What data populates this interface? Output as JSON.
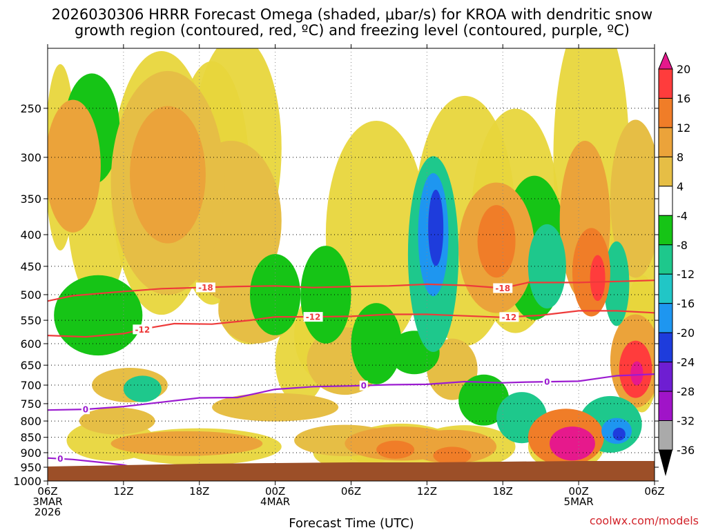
{
  "chart_data": {
    "type": "heatmap",
    "title_line1": "2026030306 HRRR Forecast Omega (shaded, μbar/s) for KROA with dendritic snow",
    "title_line2": "growth region (contoured, red, ºC) and freezing level (contoured, purple, ºC)",
    "xlabel": "Forecast Time (UTC)",
    "credit": "coolwx.com/models",
    "y_axis": {
      "unit": "hPa",
      "ticks": [
        250,
        300,
        350,
        400,
        450,
        500,
        550,
        600,
        650,
        700,
        750,
        800,
        850,
        900,
        950,
        1000
      ],
      "range": [
        200,
        1000
      ]
    },
    "x_axis": {
      "range_hours": [
        0,
        48
      ],
      "ticks": [
        {
          "h": 0,
          "line1": "06Z",
          "line2": "3MAR",
          "line3": "2026"
        },
        {
          "h": 6,
          "line1": "12Z",
          "line2": "",
          "line3": ""
        },
        {
          "h": 12,
          "line1": "18Z",
          "line2": "",
          "line3": ""
        },
        {
          "h": 18,
          "line1": "00Z",
          "line2": "4MAR",
          "line3": ""
        },
        {
          "h": 24,
          "line1": "06Z",
          "line2": "",
          "line3": ""
        },
        {
          "h": 30,
          "line1": "12Z",
          "line2": "",
          "line3": ""
        },
        {
          "h": 36,
          "line1": "18Z",
          "line2": "",
          "line3": ""
        },
        {
          "h": 42,
          "line1": "00Z",
          "line2": "5MAR",
          "line3": ""
        },
        {
          "h": 48,
          "line1": "06Z",
          "line2": "",
          "line3": ""
        }
      ]
    },
    "colorbar": {
      "labels": [
        "20",
        "16",
        "12",
        "8",
        "4",
        "-4",
        "-8",
        "-12",
        "-16",
        "-20",
        "-24",
        "-28",
        "-32",
        "-36"
      ],
      "bands": [
        {
          "from": 16,
          "to": 20,
          "color": "#ff3c3c"
        },
        {
          "from": 12,
          "to": 16,
          "color": "#f07d28"
        },
        {
          "from": 8,
          "to": 12,
          "color": "#eba33a"
        },
        {
          "from": 4,
          "to": 8,
          "color": "#e6be45"
        },
        {
          "from": -4,
          "to": 4,
          "color": "#ffffff"
        },
        {
          "from": -8,
          "to": -4,
          "color": "#16c416"
        },
        {
          "from": -12,
          "to": -8,
          "color": "#1ec88c"
        },
        {
          "from": -16,
          "to": -12,
          "color": "#21c6c6"
        },
        {
          "from": -20,
          "to": -16,
          "color": "#1e96f0"
        },
        {
          "from": -24,
          "to": -20,
          "color": "#1e3cdc"
        },
        {
          "from": -28,
          "to": -24,
          "color": "#6e1ed2"
        },
        {
          "from": -32,
          "to": -28,
          "color": "#a014c8"
        },
        {
          "from": -36,
          "to": -32,
          "color": "#aaaaaa"
        }
      ],
      "top_arrow_color": "#e6198c",
      "bottom_arrow_color": "#000000",
      "yellow_fill": "#e8d63c"
    },
    "isotherms": [
      {
        "temp": -18,
        "label": "-18",
        "color": "#ee3a3a",
        "pressure": [
          [
            0,
            512
          ],
          [
            2,
            502
          ],
          [
            5,
            496
          ],
          [
            9,
            489
          ],
          [
            12,
            487
          ],
          [
            15,
            485
          ],
          [
            18,
            484
          ],
          [
            21,
            487
          ],
          [
            24,
            485
          ],
          [
            27,
            484
          ],
          [
            30,
            481
          ],
          [
            33,
            483
          ],
          [
            36,
            488
          ],
          [
            38,
            478
          ],
          [
            42,
            478
          ],
          [
            45,
            476
          ],
          [
            48,
            474
          ]
        ],
        "label_hours": [
          12.5,
          36.0
        ]
      },
      {
        "temp": -12,
        "label": "-12",
        "color": "#ee3a3a",
        "pressure": [
          [
            0,
            582
          ],
          [
            3,
            585
          ],
          [
            6,
            578
          ],
          [
            8,
            566
          ],
          [
            10,
            557
          ],
          [
            13,
            558
          ],
          [
            16,
            550
          ],
          [
            18,
            543
          ],
          [
            21,
            543
          ],
          [
            24,
            542
          ],
          [
            27,
            538
          ],
          [
            30,
            538
          ],
          [
            33,
            541
          ],
          [
            36,
            544
          ],
          [
            39,
            540
          ],
          [
            42,
            531
          ],
          [
            45,
            531
          ],
          [
            48,
            535
          ]
        ],
        "label_hours": [
          7.5,
          21.0,
          36.5
        ]
      },
      {
        "temp": 0,
        "label": "0",
        "color": "#9b1bd0",
        "pressure": [
          [
            0,
            768
          ],
          [
            3,
            766
          ],
          [
            6,
            758
          ],
          [
            9,
            746
          ],
          [
            12,
            734
          ],
          [
            15,
            733
          ],
          [
            18,
            711
          ],
          [
            21,
            704
          ],
          [
            24,
            702
          ],
          [
            27,
            699
          ],
          [
            30,
            698
          ],
          [
            33,
            691
          ],
          [
            36,
            694
          ],
          [
            38,
            692
          ],
          [
            42,
            690
          ],
          [
            45,
            676
          ],
          [
            48,
            672
          ]
        ],
        "label_hours": [
          3.0,
          25.0,
          39.5
        ]
      },
      {
        "temp": 0,
        "label": "0",
        "color": "#9b1bd0",
        "pressure": [
          [
            0,
            918
          ],
          [
            2,
            923
          ],
          [
            4,
            932
          ],
          [
            6,
            942
          ],
          [
            7,
            952
          ],
          [
            6,
            962
          ],
          [
            4,
            966
          ],
          [
            2,
            969
          ],
          [
            0,
            970
          ]
        ],
        "label_hours": [
          1.0
        ]
      }
    ],
    "omega_cells": [
      {
        "h": 2.0,
        "p": 310,
        "dh": 2.2,
        "dp": 150,
        "v": 9
      },
      {
        "h": 4.0,
        "p": 540,
        "dh": 3.5,
        "dp": 160,
        "v": -6
      },
      {
        "h": 3.5,
        "p": 270,
        "dh": 2.2,
        "dp": 110,
        "v": -6
      },
      {
        "h": 9.5,
        "p": 330,
        "dh": 4.5,
        "dp": 260,
        "v": 7
      },
      {
        "h": 9.5,
        "p": 320,
        "dh": 3.0,
        "dp": 160,
        "v": 11
      },
      {
        "h": 6.5,
        "p": 700,
        "dh": 3.0,
        "dp": 90,
        "v": 6
      },
      {
        "h": 7.5,
        "p": 710,
        "dh": 1.5,
        "dp": 70,
        "v": -9
      },
      {
        "h": 5.5,
        "p": 800,
        "dh": 3.0,
        "dp": 80,
        "v": 6
      },
      {
        "h": 11.0,
        "p": 870,
        "dh": 6.0,
        "dp": 80,
        "v": 8
      },
      {
        "h": 14.5,
        "p": 380,
        "dh": 4.0,
        "dp": 220,
        "v": 6
      },
      {
        "h": 16.5,
        "p": 530,
        "dh": 3.0,
        "dp": 130,
        "v": 6
      },
      {
        "h": 18.0,
        "p": 500,
        "dh": 2.0,
        "dp": 150,
        "v": -7
      },
      {
        "h": 18.0,
        "p": 760,
        "dh": 5.0,
        "dp": 80,
        "v": 6
      },
      {
        "h": 19.5,
        "p": 960,
        "dh": 2.5,
        "dp": 30,
        "v": -6
      },
      {
        "h": 22.0,
        "p": 500,
        "dh": 2.0,
        "dp": 180,
        "v": -6
      },
      {
        "h": 23.5,
        "p": 640,
        "dh": 3.0,
        "dp": 160,
        "v": 5
      },
      {
        "h": 23.5,
        "p": 860,
        "dh": 4.0,
        "dp": 100,
        "v": 6
      },
      {
        "h": 26.0,
        "p": 600,
        "dh": 2.0,
        "dp": 180,
        "v": -7
      },
      {
        "h": 28.0,
        "p": 870,
        "dh": 4.5,
        "dp": 110,
        "v": 10
      },
      {
        "h": 27.5,
        "p": 890,
        "dh": 1.5,
        "dp": 60,
        "v": 15
      },
      {
        "h": 30.5,
        "p": 430,
        "dh": 2.0,
        "dp": 300,
        "v": -11
      },
      {
        "h": 30.5,
        "p": 400,
        "dh": 1.2,
        "dp": 180,
        "v": -19
      },
      {
        "h": 30.7,
        "p": 390,
        "dh": 0.6,
        "dp": 110,
        "v": -24
      },
      {
        "h": 29.0,
        "p": 620,
        "dh": 2.0,
        "dp": 100,
        "v": -8
      },
      {
        "h": 32.0,
        "p": 660,
        "dh": 2.0,
        "dp": 150,
        "v": 5
      },
      {
        "h": 32.0,
        "p": 880,
        "dh": 3.5,
        "dp": 110,
        "v": 10
      },
      {
        "h": 32.0,
        "p": 910,
        "dh": 1.5,
        "dp": 60,
        "v": 15
      },
      {
        "h": 34.5,
        "p": 740,
        "dh": 2.0,
        "dp": 140,
        "v": -7
      },
      {
        "h": 35.5,
        "p": 420,
        "dh": 3.0,
        "dp": 200,
        "v": 9
      },
      {
        "h": 35.5,
        "p": 410,
        "dh": 1.5,
        "dp": 110,
        "v": 13
      },
      {
        "h": 37.5,
        "p": 790,
        "dh": 2.0,
        "dp": 150,
        "v": -9
      },
      {
        "h": 37.5,
        "p": 820,
        "dh": 1.0,
        "dp": 60,
        "v": -12
      },
      {
        "h": 38.5,
        "p": 420,
        "dh": 2.5,
        "dp": 220,
        "v": -7
      },
      {
        "h": 39.5,
        "p": 450,
        "dh": 1.5,
        "dp": 140,
        "v": -12
      },
      {
        "h": 41.0,
        "p": 850,
        "dh": 3.0,
        "dp": 180,
        "v": 12
      },
      {
        "h": 41.5,
        "p": 870,
        "dh": 1.8,
        "dp": 110,
        "v": 20
      },
      {
        "h": 42.5,
        "p": 380,
        "dh": 2.0,
        "dp": 220,
        "v": 8
      },
      {
        "h": 43.0,
        "p": 460,
        "dh": 1.5,
        "dp": 150,
        "v": 14
      },
      {
        "h": 43.5,
        "p": 470,
        "dh": 0.6,
        "dp": 80,
        "v": 18
      },
      {
        "h": 44.5,
        "p": 810,
        "dh": 2.5,
        "dp": 170,
        "v": -10
      },
      {
        "h": 45.0,
        "p": 830,
        "dh": 1.2,
        "dp": 80,
        "v": -17
      },
      {
        "h": 45.2,
        "p": 840,
        "dh": 0.5,
        "dp": 40,
        "v": -22
      },
      {
        "h": 45.0,
        "p": 480,
        "dh": 1.0,
        "dp": 150,
        "v": -9
      },
      {
        "h": 46.5,
        "p": 640,
        "dh": 2.0,
        "dp": 220,
        "v": 8
      },
      {
        "h": 46.5,
        "p": 660,
        "dh": 1.3,
        "dp": 140,
        "v": 16
      },
      {
        "h": 46.6,
        "p": 670,
        "dh": 0.5,
        "dp": 60,
        "v": 21
      },
      {
        "h": 46.5,
        "p": 350,
        "dh": 2.0,
        "dp": 200,
        "v": 6
      }
    ],
    "terrain_color": "#9c4f28"
  }
}
